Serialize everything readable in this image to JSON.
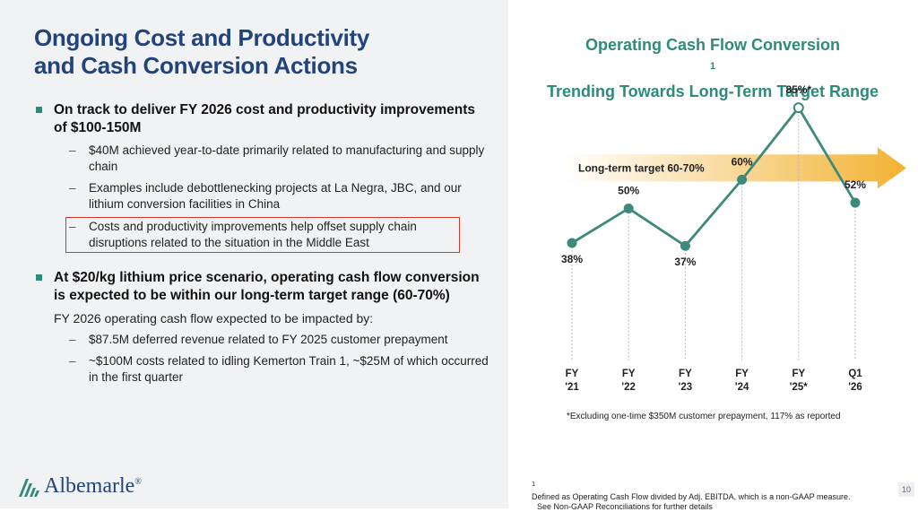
{
  "left": {
    "title_line1": "Ongoing Cost and Productivity",
    "title_line2": "and Cash Conversion Actions",
    "bullet1": "On track to deliver FY 2026 cost and productivity improvements of $100-150M",
    "bullet1_subs": [
      "$40M achieved year-to-date primarily related to manufacturing and supply chain",
      "Examples include debottlenecking projects at La Negra, JBC, and our lithium conversion facilities in China",
      "Costs and productivity improvements help offset supply chain disruptions related to the situation in the Middle East"
    ],
    "bullet2": "At $20/kg lithium price scenario, operating cash flow conversion is expected to be within our long-term target range (60-70%)",
    "bullet2_intro": "FY 2026 operating cash flow expected to be impacted by:",
    "bullet2_subs": [
      "$87.5M deferred revenue related to FY 2025 customer prepayment",
      "~$100M costs related to idling Kemerton Train 1, ~$25M of which occurred in the first quarter"
    ],
    "dash": "–",
    "logo_name": "Albemarle",
    "logo_mark": "®"
  },
  "chart_title_line1": "Operating Cash Flow Conversion",
  "chart_title_sup": "1",
  "chart_title_line2": "Trending Towards Long-Term Target Range",
  "chart_data": {
    "type": "line",
    "title": "Operating Cash Flow Conversion¹ Trending Towards Long-Term Target Range",
    "categories": [
      [
        "FY",
        "'21"
      ],
      [
        "FY",
        "'22"
      ],
      [
        "FY",
        "'23"
      ],
      [
        "FY",
        "'24"
      ],
      [
        "FY",
        "'25*"
      ],
      [
        "Q1",
        "'26"
      ]
    ],
    "values": [
      38,
      50,
      37,
      60,
      85,
      52
    ],
    "data_labels": [
      "38%",
      "50%",
      "37%",
      "60%",
      "85%*",
      "52%"
    ],
    "hollow_point_index": 4,
    "target_band_label": "Long-term target 60-70%",
    "target_range": [
      60,
      70
    ],
    "ylim": [
      20,
      95
    ],
    "colors": {
      "line": "#3d8a7a",
      "arrow": "#f2b233",
      "title": "#2e8b7a"
    }
  },
  "chart_note": "*Excluding one-time $350M customer prepayment, 117% as reported",
  "footnote_sup": "1",
  "footnote_line1": "Defined as Operating Cash Flow divided by Adj. EBITDA, which is a non-GAAP measure.",
  "footnote_line2": "See Non-GAAP Reconciliations for further details",
  "page_number": "10"
}
